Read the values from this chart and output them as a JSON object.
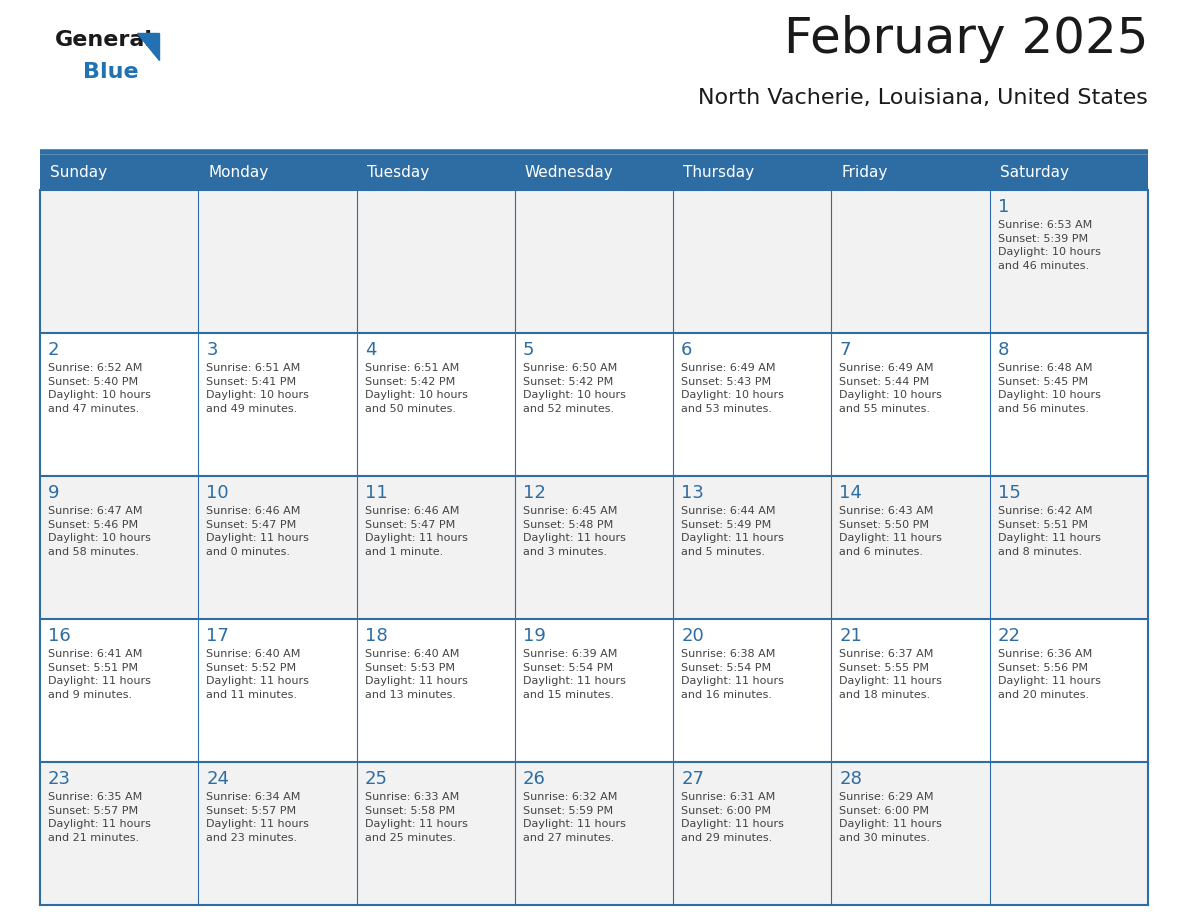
{
  "title": "February 2025",
  "subtitle": "North Vacherie, Louisiana, United States",
  "days_of_week": [
    "Sunday",
    "Monday",
    "Tuesday",
    "Wednesday",
    "Thursday",
    "Friday",
    "Saturday"
  ],
  "header_bg": "#2E6DA4",
  "header_text": "#FFFFFF",
  "cell_bg_odd": "#F2F2F2",
  "cell_bg_even": "#FFFFFF",
  "border_color": "#2E6DA4",
  "text_color": "#444444",
  "day_number_color": "#2E6DA4",
  "logo_general_color": "#1a1a1a",
  "logo_blue_color": "#2271B3",
  "calendar_data": [
    [
      {
        "day": null,
        "info": ""
      },
      {
        "day": null,
        "info": ""
      },
      {
        "day": null,
        "info": ""
      },
      {
        "day": null,
        "info": ""
      },
      {
        "day": null,
        "info": ""
      },
      {
        "day": null,
        "info": ""
      },
      {
        "day": 1,
        "info": "Sunrise: 6:53 AM\nSunset: 5:39 PM\nDaylight: 10 hours\nand 46 minutes."
      }
    ],
    [
      {
        "day": 2,
        "info": "Sunrise: 6:52 AM\nSunset: 5:40 PM\nDaylight: 10 hours\nand 47 minutes."
      },
      {
        "day": 3,
        "info": "Sunrise: 6:51 AM\nSunset: 5:41 PM\nDaylight: 10 hours\nand 49 minutes."
      },
      {
        "day": 4,
        "info": "Sunrise: 6:51 AM\nSunset: 5:42 PM\nDaylight: 10 hours\nand 50 minutes."
      },
      {
        "day": 5,
        "info": "Sunrise: 6:50 AM\nSunset: 5:42 PM\nDaylight: 10 hours\nand 52 minutes."
      },
      {
        "day": 6,
        "info": "Sunrise: 6:49 AM\nSunset: 5:43 PM\nDaylight: 10 hours\nand 53 minutes."
      },
      {
        "day": 7,
        "info": "Sunrise: 6:49 AM\nSunset: 5:44 PM\nDaylight: 10 hours\nand 55 minutes."
      },
      {
        "day": 8,
        "info": "Sunrise: 6:48 AM\nSunset: 5:45 PM\nDaylight: 10 hours\nand 56 minutes."
      }
    ],
    [
      {
        "day": 9,
        "info": "Sunrise: 6:47 AM\nSunset: 5:46 PM\nDaylight: 10 hours\nand 58 minutes."
      },
      {
        "day": 10,
        "info": "Sunrise: 6:46 AM\nSunset: 5:47 PM\nDaylight: 11 hours\nand 0 minutes."
      },
      {
        "day": 11,
        "info": "Sunrise: 6:46 AM\nSunset: 5:47 PM\nDaylight: 11 hours\nand 1 minute."
      },
      {
        "day": 12,
        "info": "Sunrise: 6:45 AM\nSunset: 5:48 PM\nDaylight: 11 hours\nand 3 minutes."
      },
      {
        "day": 13,
        "info": "Sunrise: 6:44 AM\nSunset: 5:49 PM\nDaylight: 11 hours\nand 5 minutes."
      },
      {
        "day": 14,
        "info": "Sunrise: 6:43 AM\nSunset: 5:50 PM\nDaylight: 11 hours\nand 6 minutes."
      },
      {
        "day": 15,
        "info": "Sunrise: 6:42 AM\nSunset: 5:51 PM\nDaylight: 11 hours\nand 8 minutes."
      }
    ],
    [
      {
        "day": 16,
        "info": "Sunrise: 6:41 AM\nSunset: 5:51 PM\nDaylight: 11 hours\nand 9 minutes."
      },
      {
        "day": 17,
        "info": "Sunrise: 6:40 AM\nSunset: 5:52 PM\nDaylight: 11 hours\nand 11 minutes."
      },
      {
        "day": 18,
        "info": "Sunrise: 6:40 AM\nSunset: 5:53 PM\nDaylight: 11 hours\nand 13 minutes."
      },
      {
        "day": 19,
        "info": "Sunrise: 6:39 AM\nSunset: 5:54 PM\nDaylight: 11 hours\nand 15 minutes."
      },
      {
        "day": 20,
        "info": "Sunrise: 6:38 AM\nSunset: 5:54 PM\nDaylight: 11 hours\nand 16 minutes."
      },
      {
        "day": 21,
        "info": "Sunrise: 6:37 AM\nSunset: 5:55 PM\nDaylight: 11 hours\nand 18 minutes."
      },
      {
        "day": 22,
        "info": "Sunrise: 6:36 AM\nSunset: 5:56 PM\nDaylight: 11 hours\nand 20 minutes."
      }
    ],
    [
      {
        "day": 23,
        "info": "Sunrise: 6:35 AM\nSunset: 5:57 PM\nDaylight: 11 hours\nand 21 minutes."
      },
      {
        "day": 24,
        "info": "Sunrise: 6:34 AM\nSunset: 5:57 PM\nDaylight: 11 hours\nand 23 minutes."
      },
      {
        "day": 25,
        "info": "Sunrise: 6:33 AM\nSunset: 5:58 PM\nDaylight: 11 hours\nand 25 minutes."
      },
      {
        "day": 26,
        "info": "Sunrise: 6:32 AM\nSunset: 5:59 PM\nDaylight: 11 hours\nand 27 minutes."
      },
      {
        "day": 27,
        "info": "Sunrise: 6:31 AM\nSunset: 6:00 PM\nDaylight: 11 hours\nand 29 minutes."
      },
      {
        "day": 28,
        "info": "Sunrise: 6:29 AM\nSunset: 6:00 PM\nDaylight: 11 hours\nand 30 minutes."
      },
      {
        "day": null,
        "info": ""
      }
    ]
  ]
}
